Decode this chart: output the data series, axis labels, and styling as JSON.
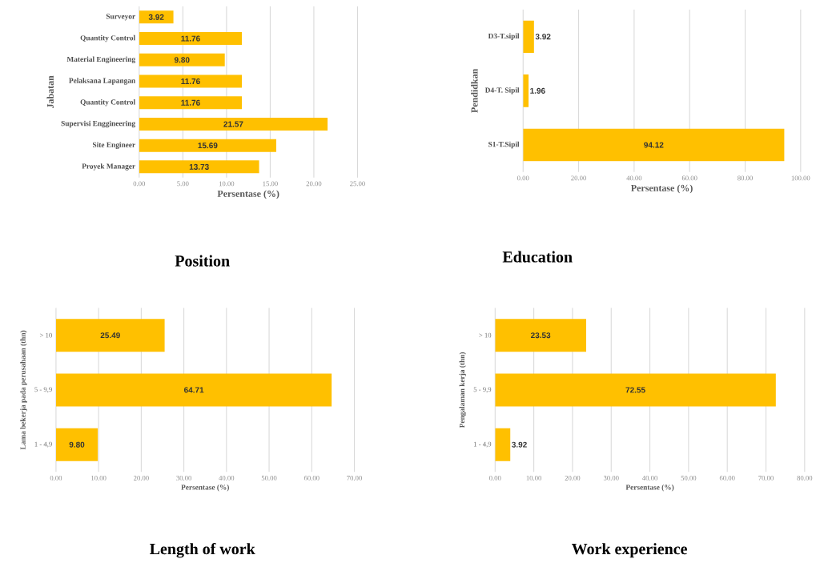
{
  "chart_data": [
    {
      "type": "bar",
      "orientation": "horizontal",
      "title": "Position",
      "xlabel": "Persentase (%)",
      "ylabel": "Jabatan",
      "categories": [
        "Surveyor",
        "Quantity Control",
        "Material Engineering",
        "Pelaksana Lapangan",
        "Quantity Control",
        "Supervisi Enggineering",
        "Site Engineer",
        "Proyek Manager"
      ],
      "values": [
        3.92,
        11.76,
        9.8,
        11.76,
        11.76,
        21.57,
        15.69,
        13.73
      ],
      "value_labels": [
        "3.92",
        "11.76",
        "9.80",
        "11.76",
        "11.76",
        "21.57",
        "15.69",
        "13.73"
      ],
      "color": "#ffc000",
      "xlim": [
        0,
        25
      ],
      "xticks": [
        {
          "value": 0,
          "label": "0.00"
        },
        {
          "value": 5,
          "label": "5.00"
        },
        {
          "value": 10,
          "label": "10.00"
        },
        {
          "value": 15,
          "label": "15.00"
        },
        {
          "value": 20,
          "label": "20.00"
        },
        {
          "value": 25,
          "label": "25.00"
        }
      ],
      "grid": "x"
    },
    {
      "type": "bar",
      "orientation": "horizontal",
      "title": "Education",
      "xlabel": "Persentase (%)",
      "ylabel": "Pendidkan",
      "categories": [
        "D3-T.sipil",
        "D4-T. Sipil",
        "S1-T.Sipil"
      ],
      "values": [
        3.92,
        1.96,
        94.12
      ],
      "value_labels": [
        "3.92",
        "1.96",
        "94.12"
      ],
      "color": "#ffc000",
      "xlim": [
        0,
        100
      ],
      "xticks": [
        {
          "value": 0,
          "label": "0.00"
        },
        {
          "value": 20,
          "label": "20.00"
        },
        {
          "value": 40,
          "label": "40.00"
        },
        {
          "value": 60,
          "label": "60.00"
        },
        {
          "value": 80,
          "label": "80.00"
        },
        {
          "value": 100,
          "label": "100.00"
        }
      ],
      "grid": "x"
    },
    {
      "type": "bar",
      "orientation": "horizontal",
      "title": "Length of work",
      "xlabel": "Persentase (%)",
      "ylabel": "Lama bekerja pada perusahaan (thn)",
      "categories": [
        "> 10",
        "5 - 9,9",
        "1 - 4,9"
      ],
      "values": [
        25.49,
        64.71,
        9.8
      ],
      "value_labels": [
        "25.49",
        "64.71",
        "9.80"
      ],
      "color": "#ffc000",
      "xlim": [
        0,
        70
      ],
      "xticks": [
        {
          "value": 0,
          "label": "0.00"
        },
        {
          "value": 10,
          "label": "10.00"
        },
        {
          "value": 20,
          "label": "20.00"
        },
        {
          "value": 30,
          "label": "30.00"
        },
        {
          "value": 40,
          "label": "40.00"
        },
        {
          "value": 50,
          "label": "50.00"
        },
        {
          "value": 60,
          "label": "60.00"
        },
        {
          "value": 70,
          "label": "70.00"
        }
      ],
      "grid": "x"
    },
    {
      "type": "bar",
      "orientation": "horizontal",
      "title": "Work experience",
      "xlabel": "Persentase (%)",
      "ylabel": "Pengalaman kerja (thn)",
      "categories": [
        "> 10",
        "5 - 9,9",
        "1 - 4,9"
      ],
      "values": [
        23.53,
        72.55,
        3.92
      ],
      "value_labels": [
        "23.53",
        "72.55",
        "3.92"
      ],
      "color": "#ffc000",
      "xlim": [
        0,
        80
      ],
      "xticks": [
        {
          "value": 0,
          "label": "0.00"
        },
        {
          "value": 10,
          "label": "10.00"
        },
        {
          "value": 20,
          "label": "20.00"
        },
        {
          "value": 30,
          "label": "30.00"
        },
        {
          "value": 40,
          "label": "40.00"
        },
        {
          "value": 50,
          "label": "50.00"
        },
        {
          "value": 60,
          "label": "60.00"
        },
        {
          "value": 70,
          "label": "70.00"
        },
        {
          "value": 80,
          "label": "80.00"
        }
      ],
      "grid": "x"
    }
  ]
}
